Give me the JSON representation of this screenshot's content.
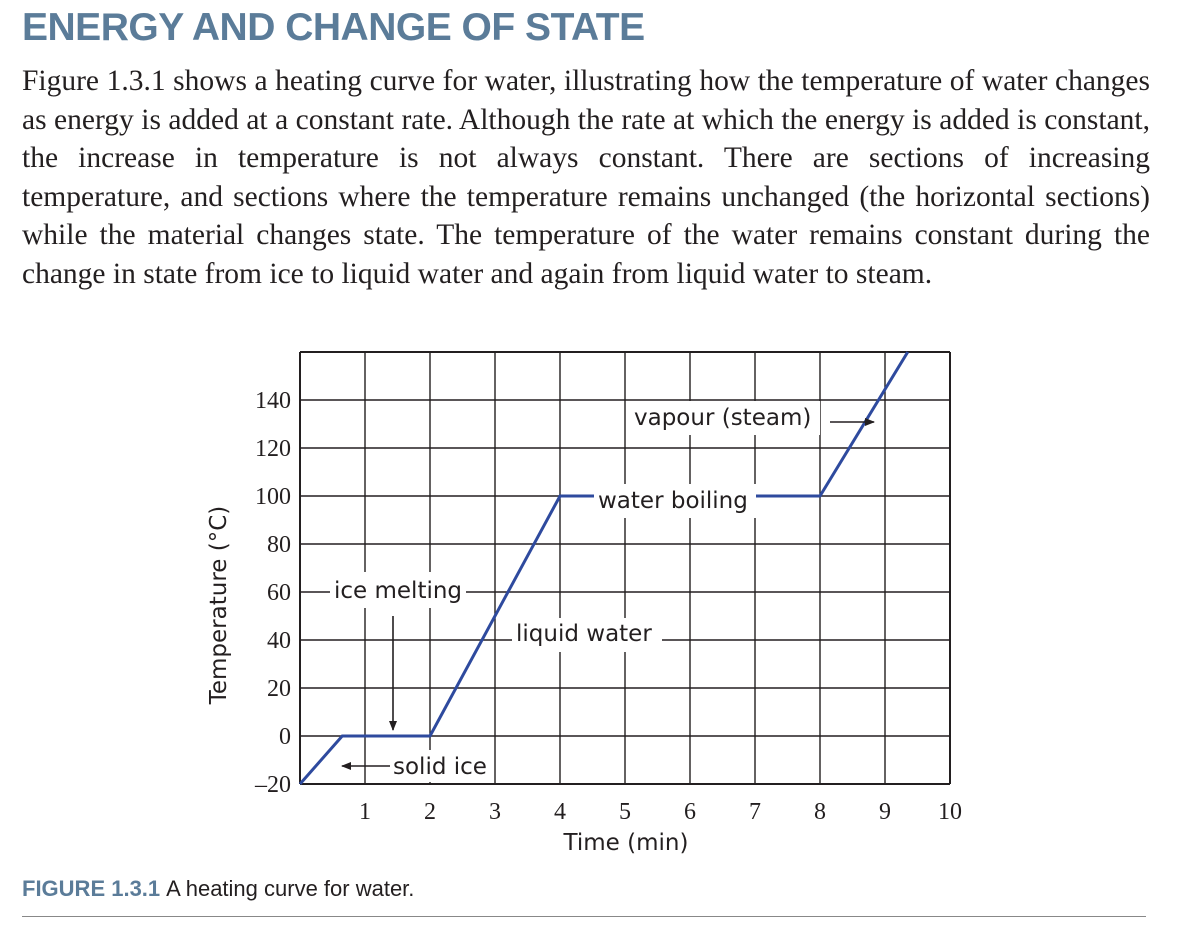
{
  "section": {
    "heading": "ENERGY AND CHANGE OF STATE",
    "paragraph": "Figure 1.3.1 shows a heating curve for water, illustrating how the temperature of water changes as energy is added at a constant rate. Although the rate at which the energy is added is constant, the increase in temperature is not always constant. There are sections of increasing temperature, and sections where the temperature remains unchanged (the horizontal sections) while the material changes state. The temperature of the water remains constant during the change in state from ice to liquid water and again from liquid water to steam."
  },
  "figure": {
    "caption_label": "FIGURE 1.3.1",
    "caption_text": "A heating curve for water."
  },
  "chart_data": {
    "type": "line",
    "title": "",
    "xlabel": "Time (min)",
    "ylabel": "Temperature (°C)",
    "xlim": [
      0,
      10
    ],
    "ylim": [
      -20,
      160
    ],
    "xticks": [
      "1",
      "2",
      "3",
      "4",
      "5",
      "6",
      "7",
      "8",
      "9",
      "10"
    ],
    "yticks": [
      "–20",
      "0",
      "20",
      "40",
      "60",
      "80",
      "100",
      "120",
      "140"
    ],
    "grid": true,
    "line_color": "#2e4a9e",
    "series": [
      {
        "x": [
          0,
          0.65,
          2,
          4,
          8,
          9.35
        ],
        "y": [
          -20,
          0,
          0,
          100,
          100,
          160
        ]
      }
    ],
    "annotations": {
      "ice_melting": "ice melting",
      "solid_ice": "solid ice",
      "liquid_water": "liquid water",
      "water_boiling": "water boiling",
      "vapour": "vapour (steam)"
    }
  }
}
